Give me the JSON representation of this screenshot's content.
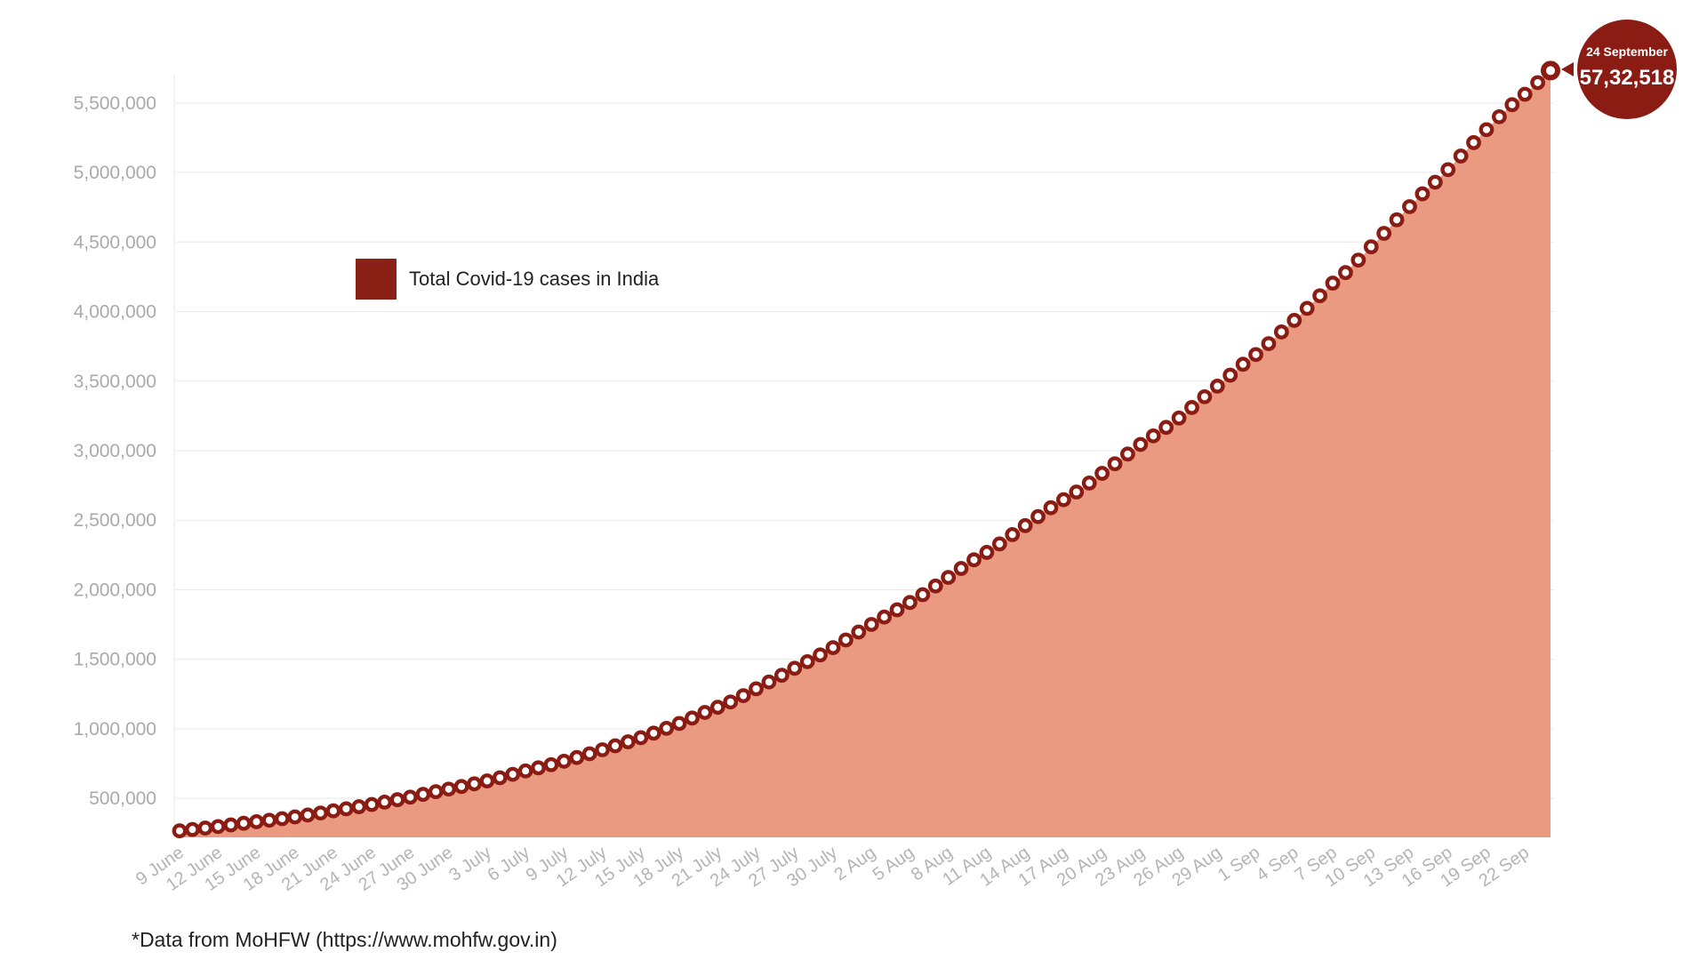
{
  "chart_data": {
    "type": "area",
    "series": [
      {
        "name": "Total Covid-19 cases in India",
        "x_start": "9 June",
        "points_per_day": 1,
        "values": [
          266598,
          276583,
          286579,
          297535,
          308993,
          320922,
          332424,
          343091,
          354065,
          366946,
          380532,
          395048,
          410461,
          425282,
          440215,
          456183,
          473105,
          490401,
          508953,
          528859,
          548318,
          566840,
          585493,
          604641,
          625544,
          648315,
          673165,
          697413,
          719665,
          742417,
          767296,
          793802,
          820916,
          849553,
          878254,
          906752,
          936181,
          968876,
          1003832,
          1038716,
          1077618,
          1118043,
          1155191,
          1193078,
          1238635,
          1287945,
          1336861,
          1385522,
          1435453,
          1483156,
          1531669,
          1583792,
          1638870,
          1695988,
          1750723,
          1803695,
          1855745,
          1908254,
          1964536,
          2027074,
          2088611,
          2153010,
          2215074,
          2268675,
          2329638,
          2396637,
          2461190,
          2525922,
          2589682,
          2647663,
          2702742,
          2767273,
          2836925,
          2905823,
          2975701,
          3044940,
          3106348,
          3167323,
          3234474,
          3310234,
          3387500,
          3463972,
          3542733,
          3621245,
          3691166,
          3769523,
          3853406,
          3936747,
          4023179,
          4113811,
          4204613,
          4280422,
          4370128,
          4465863,
          4562414,
          4659984,
          4754356,
          4846427,
          4930236,
          5020359,
          5118253,
          5214677,
          5308014,
          5400619,
          5487580,
          5562663,
          5646010,
          5732518
        ]
      }
    ],
    "x_tick_labels": [
      "9 June",
      "12 June",
      "15 June",
      "18 June",
      "21 June",
      "24 June",
      "27 June",
      "30 June",
      "3 July",
      "6 July",
      "9 July",
      "12 July",
      "15 July",
      "18 July",
      "21 July",
      "24 July",
      "27 July",
      "30 July",
      "2 Aug",
      "5 Aug",
      "8 Aug",
      "11 Aug",
      "14 Aug",
      "17 Aug",
      "20 Aug",
      "23 Aug",
      "26 Aug",
      "29 Aug",
      "1 Sep",
      "4 Sep",
      "7 Sep",
      "10 Sep",
      "13 Sep",
      "16 Sep",
      "19 Sep",
      "22 Sep"
    ],
    "y_tick_labels": [
      "500,000",
      "1,000,000",
      "1,500,000",
      "2,000,000",
      "2,500,000",
      "3,000,000",
      "3,500,000",
      "4,000,000",
      "4,500,000",
      "5,000,000",
      "5,500,000"
    ],
    "y_ticks": [
      500000,
      1000000,
      1500000,
      2000000,
      2500000,
      3000000,
      3500000,
      4000000,
      4500000,
      5000000,
      5500000
    ],
    "ylim": [
      220000,
      5780000
    ],
    "legend": {
      "label": "Total Covid-19 cases in India",
      "position": "top-left"
    },
    "grid": true,
    "annotation": {
      "date": "24 September",
      "value": "57,32,518"
    },
    "colors": {
      "area_fill": "#e99a81",
      "marker": "#8b1c13",
      "marker_center": "#ffffff",
      "legend_swatch": "#8b2116",
      "annotation_bubble": "#8a1c14"
    }
  },
  "footer": {
    "source_note": "*Data from MoHFW (https://www.mohfw.gov.in)"
  }
}
